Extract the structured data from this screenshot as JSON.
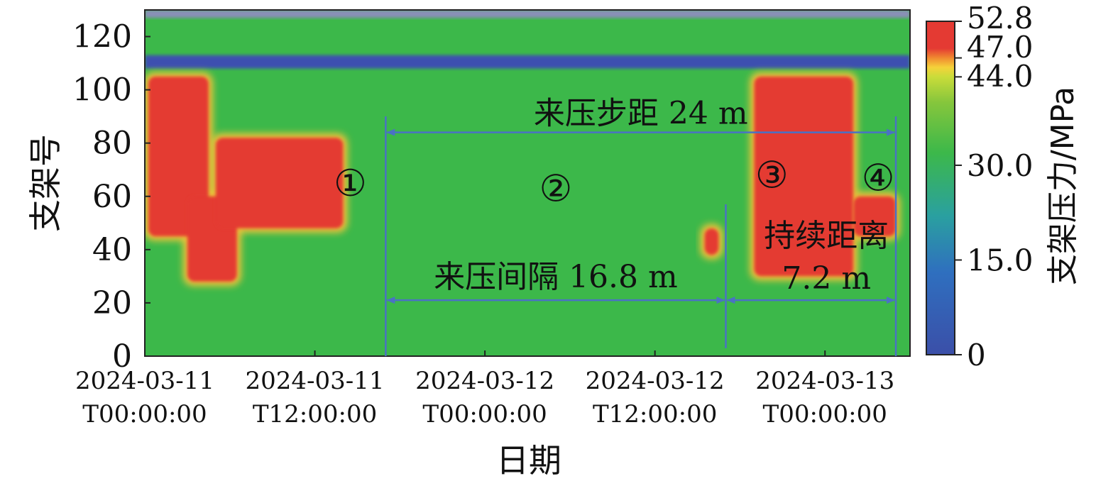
{
  "chart_data": {
    "type": "heatmap",
    "xlabel": "日期",
    "ylabel": "支架号",
    "x_ticks": [
      {
        "value": "2024-03-11T00:00:00",
        "line1": "2024-03-11",
        "line2": "T00:00:00"
      },
      {
        "value": "2024-03-11T12:00:00",
        "line1": "2024-03-11",
        "line2": "T12:00:00"
      },
      {
        "value": "2024-03-12T00:00:00",
        "line1": "2024-03-12",
        "line2": "T00:00:00"
      },
      {
        "value": "2024-03-12T12:00:00",
        "line1": "2024-03-12",
        "line2": "T12:00:00"
      },
      {
        "value": "2024-03-13T00:00:00",
        "line1": "2024-03-13",
        "line2": "T00:00:00"
      }
    ],
    "xlim": [
      "2024-03-11T00:00:00",
      "2024-03-13T06:00:00"
    ],
    "y_ticks": [
      0,
      20,
      40,
      60,
      80,
      100,
      120
    ],
    "ylim": [
      0,
      130
    ],
    "colorbar": {
      "label": "支架压力/MPa",
      "ticks": [
        0,
        15.0,
        30.0,
        44.0,
        47.0,
        52.8
      ],
      "tick_labels": [
        "0",
        "15.0",
        "30.0",
        "44.0",
        "47.0",
        "52.8"
      ],
      "range": [
        0,
        52.8
      ],
      "stops": [
        {
          "value": 0,
          "color": "#3b4fa8"
        },
        {
          "value": 13,
          "color": "#2f6fbf"
        },
        {
          "value": 22,
          "color": "#2aa0a0"
        },
        {
          "value": 32,
          "color": "#3cb84a"
        },
        {
          "value": 40,
          "color": "#86c63c"
        },
        {
          "value": 44,
          "color": "#c9dc3a"
        },
        {
          "value": 45.5,
          "color": "#f5d23a"
        },
        {
          "value": 47,
          "color": "#f08a30"
        },
        {
          "value": 48.5,
          "color": "#e43a33"
        },
        {
          "value": 52.8,
          "color": "#e43a33"
        }
      ]
    },
    "background_pressure": 37,
    "low_pressure_bands": [
      {
        "y_range": [
          127,
          130
        ],
        "color": "#8a8fb8",
        "note": "top edge"
      },
      {
        "y_range": [
          108,
          113
        ],
        "color": "#3d4fb0"
      }
    ],
    "high_pressure_regions": [
      {
        "x": [
          "2024-03-11T00:15:00",
          "2024-03-11T04:30:00"
        ],
        "y": [
          45,
          105
        ]
      },
      {
        "x": [
          "2024-03-11T03:00:00",
          "2024-03-11T06:30:00"
        ],
        "y": [
          28,
          60
        ]
      },
      {
        "x": [
          "2024-03-11T05:00:00",
          "2024-03-11T14:00:00"
        ],
        "y": [
          48,
          82
        ]
      },
      {
        "x": [
          "2024-03-12T15:30:00",
          "2024-03-12T16:30:00"
        ],
        "y": [
          38,
          48
        ]
      },
      {
        "x": [
          "2024-03-12T19:00:00",
          "2024-03-13T02:00:00"
        ],
        "y": [
          30,
          105
        ]
      },
      {
        "x": [
          "2024-03-13T02:00:00",
          "2024-03-13T05:00:00"
        ],
        "y": [
          45,
          60
        ]
      }
    ],
    "markers": [
      {
        "label": "①",
        "x": "2024-03-11T14:30:00",
        "y": 65
      },
      {
        "label": "②",
        "x": "2024-03-12T05:00:00",
        "y": 63
      },
      {
        "label": "③",
        "x": "2024-03-12T20:15:00",
        "y": 68
      },
      {
        "label": "④",
        "x": "2024-03-13T03:45:00",
        "y": 67
      }
    ],
    "vertical_lines": [
      {
        "x": "2024-03-11T17:00:00",
        "y_range": [
          0,
          90
        ]
      },
      {
        "x": "2024-03-12T17:00:00",
        "y_range": [
          3,
          57
        ]
      },
      {
        "x": "2024-03-13T05:00:00",
        "y_range": [
          0,
          90
        ]
      }
    ],
    "dimension_annotations": [
      {
        "text": "来压步距 24 m",
        "from": "2024-03-11T17:00:00",
        "to": "2024-03-13T05:00:00",
        "y": 84
      },
      {
        "text": "来压间隔 16.8 m",
        "from": "2024-03-11T17:00:00",
        "to": "2024-03-12T17:00:00",
        "y": 21
      },
      {
        "text_lines": [
          "持续距离",
          "7.2 m"
        ],
        "from": "2024-03-12T17:00:00",
        "to": "2024-03-13T05:00:00",
        "y": 21
      }
    ]
  }
}
